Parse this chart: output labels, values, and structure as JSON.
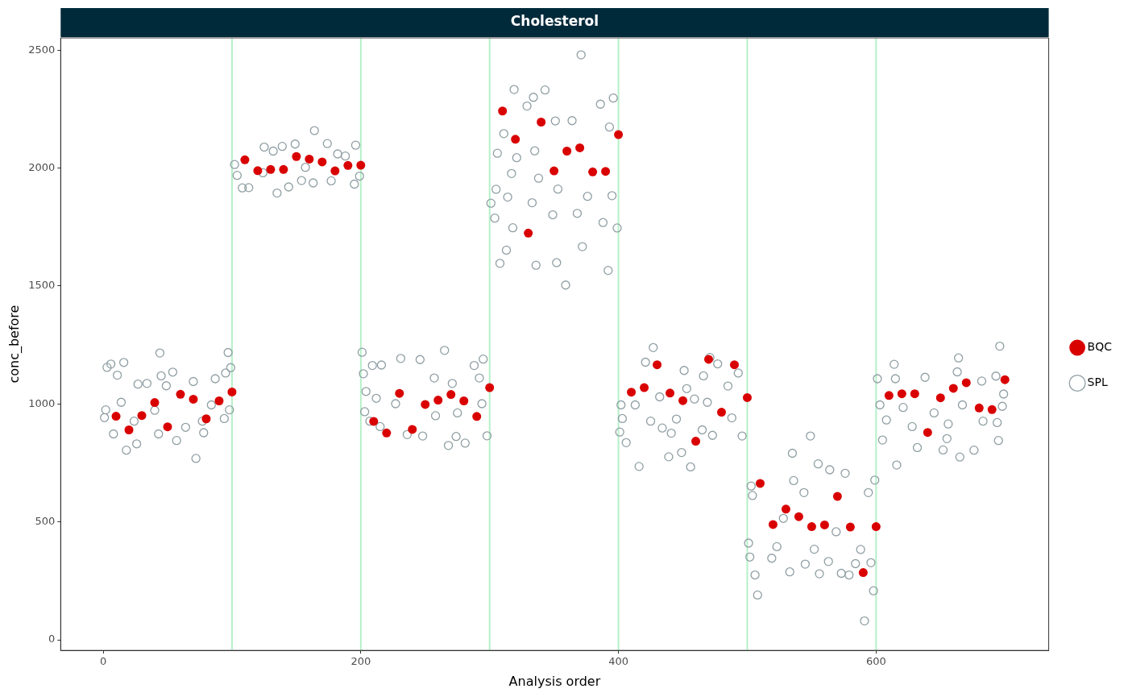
{
  "chart_data": {
    "type": "scatter",
    "title": "Cholesterol",
    "xlabel": "Analysis order",
    "ylabel": "conc_before",
    "xlim": [
      -33,
      734
    ],
    "xticks": [
      0,
      200,
      400,
      600
    ],
    "ylim": [
      -45,
      2552
    ],
    "yticks": [
      0,
      500,
      1000,
      1500,
      2000,
      2500
    ],
    "grid": false,
    "legend": "right",
    "marker": "circle",
    "ref_lines": [
      {
        "axis": "x",
        "value": 100,
        "color": "#b5f0c8"
      },
      {
        "axis": "x",
        "value": 200,
        "color": "#b5f0c8"
      },
      {
        "axis": "x",
        "value": 300,
        "color": "#b5f0c8"
      },
      {
        "axis": "x",
        "value": 400,
        "color": "#b5f0c8"
      },
      {
        "axis": "x",
        "value": 500,
        "color": "#b5f0c8"
      },
      {
        "axis": "x",
        "value": 600,
        "color": "#b5f0c8"
      }
    ],
    "series": [
      {
        "name": "BQC",
        "color": "#d90000",
        "x": [
          10,
          20,
          30,
          40,
          50,
          60,
          70,
          80,
          90,
          100,
          110,
          120,
          130,
          140,
          150,
          160,
          170,
          180,
          190,
          200,
          210,
          220,
          230,
          240,
          250,
          260,
          270,
          280,
          290,
          300,
          310,
          320,
          330,
          340,
          350,
          360,
          370,
          380,
          390,
          400,
          410,
          420,
          430,
          440,
          450,
          460,
          470,
          480,
          490,
          500,
          510,
          520,
          530,
          540,
          550,
          560,
          570,
          580,
          590,
          600,
          610,
          620,
          630,
          640,
          650,
          660,
          670,
          680,
          690,
          700
        ],
        "values": [
          948,
          890,
          951,
          1006,
          903,
          1041,
          1020,
          937,
          1013,
          1051,
          2035,
          1989,
          1994,
          1994,
          2049,
          2038,
          2026,
          1988,
          2011,
          2012,
          926,
          877,
          1045,
          892,
          998,
          1016,
          1040,
          1013,
          947,
          1069,
          2242,
          2122,
          1724,
          2195,
          1988,
          2072,
          2086,
          1984,
          1986,
          2142,
          1050,
          1069,
          1166,
          1046,
          1014,
          842,
          1189,
          965,
          1166,
          1027,
          663,
          489,
          554,
          522,
          480,
          487,
          608,
          478,
          285,
          480,
          1036,
          1043,
          1043,
          879,
          1026,
          1066,
          1090,
          983,
          976,
          1103
        ]
      },
      {
        "name": "SPL",
        "color": "#8f9ea3",
        "x": [
          3,
          6,
          16,
          11,
          44,
          97,
          99,
          1,
          2,
          8,
          18,
          26,
          72,
          57,
          78,
          27,
          34,
          49,
          45,
          54,
          70,
          87,
          95,
          98,
          94,
          64,
          43,
          24,
          14,
          40,
          77,
          84,
          164,
          125,
          139,
          149,
          174,
          196,
          102,
          104,
          108,
          113,
          135,
          144,
          154,
          163,
          177,
          195,
          199,
          132,
          182,
          188,
          124,
          157,
          201,
          265,
          231,
          246,
          209,
          216,
          288,
          295,
          202,
          204,
          212,
          203,
          207,
          215,
          236,
          248,
          268,
          274,
          281,
          298,
          257,
          292,
          271,
          227,
          258,
          275,
          294,
          371,
          319,
          343,
          334,
          396,
          386,
          329,
          351,
          364,
          311,
          393,
          306,
          321,
          335,
          317,
          338,
          305,
          314,
          333,
          301,
          304,
          349,
          368,
          388,
          399,
          318,
          313,
          308,
          336,
          352,
          372,
          392,
          359,
          376,
          395,
          353,
          427,
          421,
          471,
          477,
          493,
          451,
          402,
          403,
          401,
          406,
          416,
          439,
          449,
          456,
          465,
          473,
          496,
          441,
          434,
          425,
          445,
          488,
          459,
          469,
          413,
          432,
          453,
          466,
          485,
          549,
          535,
          555,
          564,
          576,
          599,
          503,
          504,
          501,
          502,
          506,
          508,
          519,
          533,
          545,
          556,
          573,
          579,
          584,
          596,
          598,
          591,
          536,
          523,
          552,
          563,
          569,
          588,
          594,
          528,
          544,
          696,
          664,
          614,
          601,
          616,
          665,
          695,
          676,
          652,
          632,
          605,
          603,
          608,
          655,
          693,
          682,
          663,
          638,
          615,
          699,
          698,
          694,
          656,
          628,
          667,
          645,
          683,
          621
        ],
        "values": [
          1155,
          1169,
          1176,
          1122,
          1216,
          1218,
          1154,
          942,
          975,
          873,
          804,
          831,
          769,
          845,
          878,
          1084,
          1087,
          1077,
          1119,
          1135,
          1095,
          1107,
          1131,
          975,
          938,
          901,
          873,
          927,
          1007,
          973,
          927,
          996,
          2159,
          2089,
          2092,
          2102,
          2104,
          2097,
          2015,
          1969,
          1916,
          1917,
          1894,
          1920,
          1947,
          1937,
          1946,
          1932,
          1966,
          2072,
          2060,
          2051,
          1980,
          2003,
          1219,
          1227,
          1193,
          1188,
          1163,
          1165,
          1163,
          1190,
          1128,
          1053,
          1024,
          967,
          927,
          904,
          870,
          864,
          824,
          862,
          834,
          865,
          1110,
          1110,
          1087,
          1001,
          950,
          962,
          1001,
          2480,
          2333,
          2331,
          2300,
          2297,
          2271,
          2263,
          2200,
          2201,
          2146,
          2174,
          2063,
          2044,
          2073,
          1977,
          1957,
          1910,
          1877,
          1853,
          1851,
          1788,
          1802,
          1808,
          1769,
          1746,
          1747,
          1652,
          1596,
          1588,
          1599,
          1667,
          1566,
          1504,
          1880,
          1883,
          1911,
          1239,
          1177,
          1197,
          1170,
          1131,
          1142,
          996,
          938,
          881,
          836,
          735,
          776,
          794,
          733,
          890,
          867,
          864,
          876,
          898,
          927,
          936,
          941,
          1021,
          1007,
          996,
          1030,
          1065,
          1119,
          1076,
          864,
          791,
          746,
          721,
          706,
          677,
          652,
          612,
          410,
          351,
          275,
          190,
          346,
          288,
          321,
          280,
          282,
          275,
          323,
          327,
          208,
          80,
          675,
          395,
          384,
          332,
          458,
          383,
          624,
          515,
          624,
          1245,
          1195,
          1168,
          1107,
          741,
          775,
          845,
          804,
          805,
          815,
          847,
          996,
          932,
          853,
          1118,
          1097,
          1136,
          1113,
          1107,
          1042,
          990,
          921,
          915,
          904,
          996,
          962,
          927,
          985
        ]
      }
    ]
  }
}
